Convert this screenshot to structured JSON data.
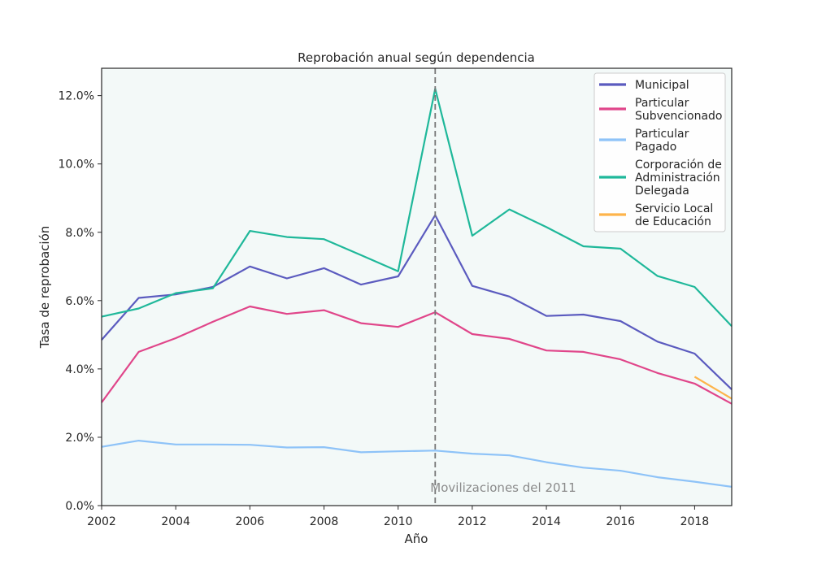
{
  "chart_data": {
    "type": "line",
    "title": "Reprobación anual según dependencia",
    "xlabel": "Año",
    "ylabel": "Tasa de reprobación",
    "xlim": [
      2002,
      2019
    ],
    "ylim": [
      0,
      0.128
    ],
    "x_ticks": [
      2002,
      2004,
      2006,
      2008,
      2010,
      2012,
      2014,
      2016,
      2018
    ],
    "y_ticks": [
      0,
      0.02,
      0.04,
      0.06,
      0.08,
      0.1,
      0.12
    ],
    "y_tick_labels": [
      "0.0%",
      "2.0%",
      "4.0%",
      "6.0%",
      "8.0%",
      "10.0%",
      "12.0%"
    ],
    "grid": false,
    "legend_position": "top-right",
    "background_color": "#f3f9f8",
    "x": [
      2002,
      2003,
      2004,
      2005,
      2006,
      2007,
      2008,
      2009,
      2010,
      2011,
      2012,
      2013,
      2014,
      2015,
      2016,
      2017,
      2018,
      2019
    ],
    "series": [
      {
        "name": "Municipal",
        "legend_lines": [
          "Municipal"
        ],
        "color": "#5b5bbf",
        "x": [
          2002,
          2003,
          2004,
          2005,
          2006,
          2007,
          2008,
          2009,
          2010,
          2011,
          2012,
          2013,
          2014,
          2015,
          2016,
          2017,
          2018,
          2019
        ],
        "values": [
          0.0485,
          0.0608,
          0.0618,
          0.064,
          0.07,
          0.0665,
          0.0695,
          0.0647,
          0.0671,
          0.085,
          0.0643,
          0.0612,
          0.0555,
          0.0559,
          0.054,
          0.048,
          0.0445,
          0.034
        ]
      },
      {
        "name": "Particular Subvencionado",
        "legend_lines": [
          "Particular",
          "Subvencionado"
        ],
        "color": "#e0468a",
        "x": [
          2002,
          2003,
          2004,
          2005,
          2006,
          2007,
          2008,
          2009,
          2010,
          2011,
          2012,
          2013,
          2014,
          2015,
          2016,
          2017,
          2018,
          2019
        ],
        "values": [
          0.0302,
          0.045,
          0.049,
          0.0538,
          0.0583,
          0.0561,
          0.0572,
          0.0534,
          0.0523,
          0.0566,
          0.0502,
          0.0488,
          0.0454,
          0.045,
          0.0428,
          0.0388,
          0.0357,
          0.0298
        ]
      },
      {
        "name": "Particular Pagado",
        "legend_lines": [
          "Particular",
          "Pagado"
        ],
        "color": "#8ec3f8",
        "x": [
          2002,
          2003,
          2004,
          2005,
          2006,
          2007,
          2008,
          2009,
          2010,
          2011,
          2012,
          2013,
          2014,
          2015,
          2016,
          2017,
          2018,
          2019
        ],
        "values": [
          0.0172,
          0.019,
          0.0179,
          0.0179,
          0.0178,
          0.017,
          0.0171,
          0.0156,
          0.0159,
          0.0161,
          0.0152,
          0.0147,
          0.0127,
          0.0111,
          0.0102,
          0.0083,
          0.007,
          0.0055
        ]
      },
      {
        "name": "Corporación de Administración Delegada",
        "legend_lines": [
          "Corporación de",
          "Administración",
          "Delegada"
        ],
        "color": "#1fb89a",
        "x": [
          2002,
          2003,
          2004,
          2005,
          2006,
          2007,
          2008,
          2009,
          2010,
          2011,
          2012,
          2013,
          2014,
          2015,
          2016,
          2017,
          2018,
          2019
        ],
        "values": [
          0.0553,
          0.0577,
          0.0622,
          0.0636,
          0.0804,
          0.0786,
          0.078,
          0.0733,
          0.0686,
          0.122,
          0.079,
          0.0867,
          0.0815,
          0.0759,
          0.0752,
          0.0672,
          0.064,
          0.0525
        ]
      },
      {
        "name": "Servicio Local de Educación",
        "legend_lines": [
          "Servicio Local",
          "de Educación"
        ],
        "color": "#fdb44b",
        "x": [
          2018,
          2019
        ],
        "values": [
          0.0377,
          0.0313
        ]
      }
    ],
    "annotations": [
      {
        "type": "vline",
        "x": 2011,
        "color": "#777777",
        "label": "Movilizaciones del 2011"
      }
    ]
  }
}
